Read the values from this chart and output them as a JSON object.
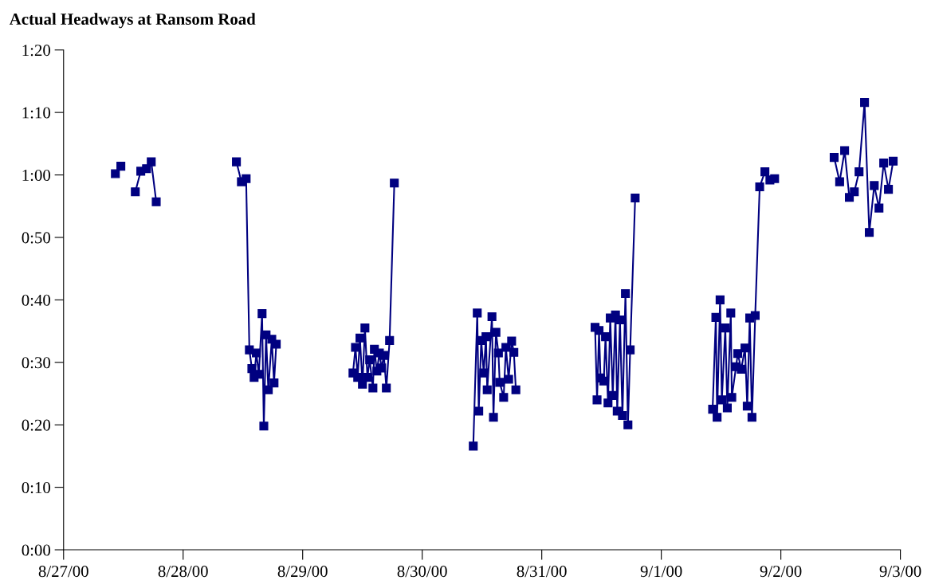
{
  "chart_data": {
    "type": "line",
    "title": "Actual Headways at Ransom Road",
    "marker": "square",
    "line_style": "solid",
    "grid": false,
    "legend": false,
    "xlim": [
      "2000-08-27",
      "2000-09-03"
    ],
    "xticks": [
      {
        "value": "2000-08-27",
        "label": "8/27/00"
      },
      {
        "value": "2000-08-28",
        "label": "8/28/00"
      },
      {
        "value": "2000-08-29",
        "label": "8/29/00"
      },
      {
        "value": "2000-08-30",
        "label": "8/30/00"
      },
      {
        "value": "2000-08-31",
        "label": "8/31/00"
      },
      {
        "value": "2000-09-01",
        "label": "9/1/00"
      },
      {
        "value": "2000-09-02",
        "label": "9/2/00"
      },
      {
        "value": "2000-09-03",
        "label": "9/3/00"
      }
    ],
    "ylim": [
      0,
      80
    ],
    "yticks": [
      {
        "value": 0,
        "label": "0:00"
      },
      {
        "value": 10,
        "label": "0:10"
      },
      {
        "value": 20,
        "label": "0:20"
      },
      {
        "value": 30,
        "label": "0:30"
      },
      {
        "value": 40,
        "label": "0:40"
      },
      {
        "value": 50,
        "label": "0:50"
      },
      {
        "value": 60,
        "label": "1:00"
      },
      {
        "value": 70,
        "label": "1:10"
      },
      {
        "value": 80,
        "label": "1:20"
      }
    ],
    "series": [
      {
        "color": "#000080",
        "x": [
          "2000-08-27T10:24",
          "2000-08-27T11:30",
          "2000-08-27T13:00",
          "2000-08-27T14:24",
          "2000-08-27T15:30",
          "2000-08-27T16:39",
          "2000-08-27T17:36",
          "2000-08-27T18:36"
        ],
        "values": [
          60.2,
          61.4,
          null,
          57.3,
          60.6,
          61.0,
          62.1,
          55.7
        ]
      },
      {
        "color": "#000080",
        "x": [
          "2000-08-28T10:42",
          "2000-08-28T11:42",
          "2000-08-28T12:39",
          "2000-08-28T13:18",
          "2000-08-28T13:48",
          "2000-08-28T14:15",
          "2000-08-28T14:42",
          "2000-08-28T15:12",
          "2000-08-28T15:51",
          "2000-08-28T16:12",
          "2000-08-28T16:39",
          "2000-08-28T17:06",
          "2000-08-28T17:48",
          "2000-08-28T18:15",
          "2000-08-28T18:42"
        ],
        "values": [
          62.1,
          58.9,
          59.4,
          32.0,
          29.0,
          27.6,
          31.5,
          28.1,
          37.8,
          19.8,
          34.4,
          25.6,
          33.7,
          26.7,
          32.9
        ]
      },
      {
        "color": "#000080",
        "x": [
          "2000-08-29T10:06",
          "2000-08-29T10:36",
          "2000-08-29T11:03",
          "2000-08-29T11:30",
          "2000-08-29T12:00",
          "2000-08-29T12:30",
          "2000-08-29T13:00",
          "2000-08-29T13:27",
          "2000-08-29T14:06",
          "2000-08-29T14:24",
          "2000-08-29T14:54",
          "2000-08-29T15:24",
          "2000-08-29T15:51",
          "2000-08-29T16:18",
          "2000-08-29T16:48",
          "2000-08-29T17:27",
          "2000-08-29T18:24"
        ],
        "values": [
          28.3,
          32.4,
          27.6,
          33.9,
          26.5,
          35.5,
          27.6,
          30.4,
          25.9,
          32.1,
          28.6,
          31.5,
          29.1,
          31.1,
          25.9,
          33.5,
          58.7
        ]
      },
      {
        "color": "#000080",
        "x": [
          "2000-08-30T10:15",
          "2000-08-30T11:03",
          "2000-08-30T11:21",
          "2000-08-30T11:51",
          "2000-08-30T12:21",
          "2000-08-30T12:48",
          "2000-08-30T13:03",
          "2000-08-30T14:00",
          "2000-08-30T14:18",
          "2000-08-30T14:48",
          "2000-08-30T15:18",
          "2000-08-30T15:33",
          "2000-08-30T16:21",
          "2000-08-30T16:48",
          "2000-08-30T17:21",
          "2000-08-30T17:57",
          "2000-08-30T18:24",
          "2000-08-30T18:48"
        ],
        "values": [
          16.6,
          37.9,
          22.2,
          33.5,
          28.3,
          34.1,
          25.6,
          37.3,
          21.2,
          34.8,
          31.5,
          26.8,
          24.4,
          32.4,
          27.3,
          33.4,
          31.6,
          25.6
        ]
      },
      {
        "color": "#000080",
        "x": [
          "2000-08-31T10:42",
          "2000-08-31T11:06",
          "2000-08-31T11:30",
          "2000-08-31T11:48",
          "2000-08-31T12:27",
          "2000-08-31T12:48",
          "2000-08-31T13:18",
          "2000-08-31T13:45",
          "2000-08-31T14:15",
          "2000-08-31T14:48",
          "2000-08-31T15:09",
          "2000-08-31T15:42",
          "2000-08-31T16:12",
          "2000-08-31T16:48",
          "2000-08-31T17:18",
          "2000-08-31T17:45",
          "2000-08-31T18:45"
        ],
        "values": [
          35.6,
          24.0,
          35.1,
          27.5,
          27.0,
          34.1,
          23.5,
          37.1,
          24.7,
          37.6,
          22.2,
          36.8,
          21.5,
          41.0,
          20.0,
          32.0,
          56.3
        ]
      },
      {
        "color": "#000080",
        "x": [
          "2000-09-01T10:18",
          "2000-09-01T10:57",
          "2000-09-01T11:12",
          "2000-09-01T11:48",
          "2000-09-01T12:09",
          "2000-09-01T12:51",
          "2000-09-01T13:15",
          "2000-09-01T13:57",
          "2000-09-01T14:09",
          "2000-09-01T15:00",
          "2000-09-01T15:21",
          "2000-09-01T16:03",
          "2000-09-01T16:48",
          "2000-09-01T17:15",
          "2000-09-01T17:45",
          "2000-09-01T18:12",
          "2000-09-01T18:51",
          "2000-09-01T19:45",
          "2000-09-01T20:48",
          "2000-09-01T21:48",
          "2000-09-01T22:45"
        ],
        "values": [
          22.5,
          37.2,
          21.2,
          40.0,
          24.0,
          35.5,
          22.7,
          37.9,
          24.4,
          29.3,
          31.4,
          28.9,
          32.3,
          23.0,
          37.1,
          21.2,
          37.5,
          58.1,
          60.5,
          59.2,
          59.4
        ]
      },
      {
        "color": "#000080",
        "x": [
          "2000-09-02T10:42",
          "2000-09-02T11:48",
          "2000-09-02T12:48",
          "2000-09-02T13:45",
          "2000-09-02T14:45",
          "2000-09-02T15:42",
          "2000-09-02T16:48",
          "2000-09-02T17:45",
          "2000-09-02T18:45",
          "2000-09-02T19:42",
          "2000-09-02T20:39",
          "2000-09-02T21:36",
          "2000-09-02T22:33"
        ],
        "values": [
          62.8,
          58.9,
          63.9,
          56.4,
          57.3,
          60.5,
          71.6,
          50.8,
          58.3,
          54.7,
          61.9,
          57.7,
          62.2
        ]
      }
    ]
  }
}
